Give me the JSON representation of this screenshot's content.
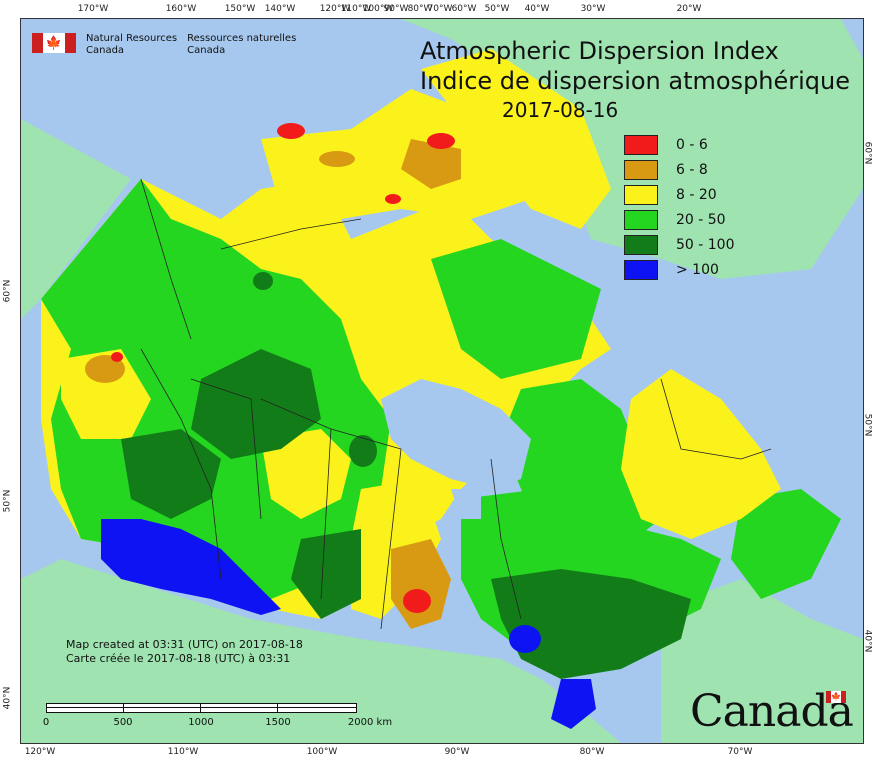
{
  "top_longitudes": [
    "170°W",
    "160°W",
    "150°W",
    "140°W",
    "120°W",
    "110°W",
    "100°W",
    "90°W",
    "80°W",
    "70°W",
    "60°W",
    "50°W",
    "40°W",
    "30°W",
    "20°W"
  ],
  "bottom_longitudes": [
    "120°W",
    "110°W",
    "100°W",
    "90°W",
    "80°W",
    "70°W"
  ],
  "left_latitudes": [
    "60°N",
    "50°N",
    "40°N"
  ],
  "right_latitudes": [
    "60°N",
    "50°N",
    "40°N"
  ],
  "agency": {
    "en_line1": "Natural Resources",
    "en_line2": "Canada",
    "fr_line1": "Ressources naturelles",
    "fr_line2": "Canada"
  },
  "title": {
    "en": "Atmospheric Dispersion Index",
    "fr": "Indice de dispersion atmosphérique",
    "date": "2017-08-16"
  },
  "legend": [
    {
      "label": "0 - 6",
      "color": "#f21b1b"
    },
    {
      "label": "6 - 8",
      "color": "#d89a12"
    },
    {
      "label": "8 - 20",
      "color": "#fbf21c"
    },
    {
      "label": "20 - 50",
      "color": "#24d61f"
    },
    {
      "label": "50 - 100",
      "color": "#127d18"
    },
    {
      "label": "> 100",
      "color": "#0d13f2"
    }
  ],
  "credit": {
    "en": "Map created at 03:31 (UTC) on 2017-08-18",
    "fr": "Carte créée le 2017-08-18 (UTC) à 03:31"
  },
  "scale": {
    "labels": [
      "0",
      "500",
      "1000",
      "1500",
      "2000  km"
    ]
  },
  "wordmark": "Canada",
  "colors": {
    "ocean": "#a6c8ee",
    "other_land": "#9fe3b0",
    "red": "#f21b1b",
    "orange": "#d89a12",
    "yellow": "#fbf21c",
    "green": "#24d61f",
    "dark_green": "#127d18",
    "blue": "#0d13f2"
  }
}
